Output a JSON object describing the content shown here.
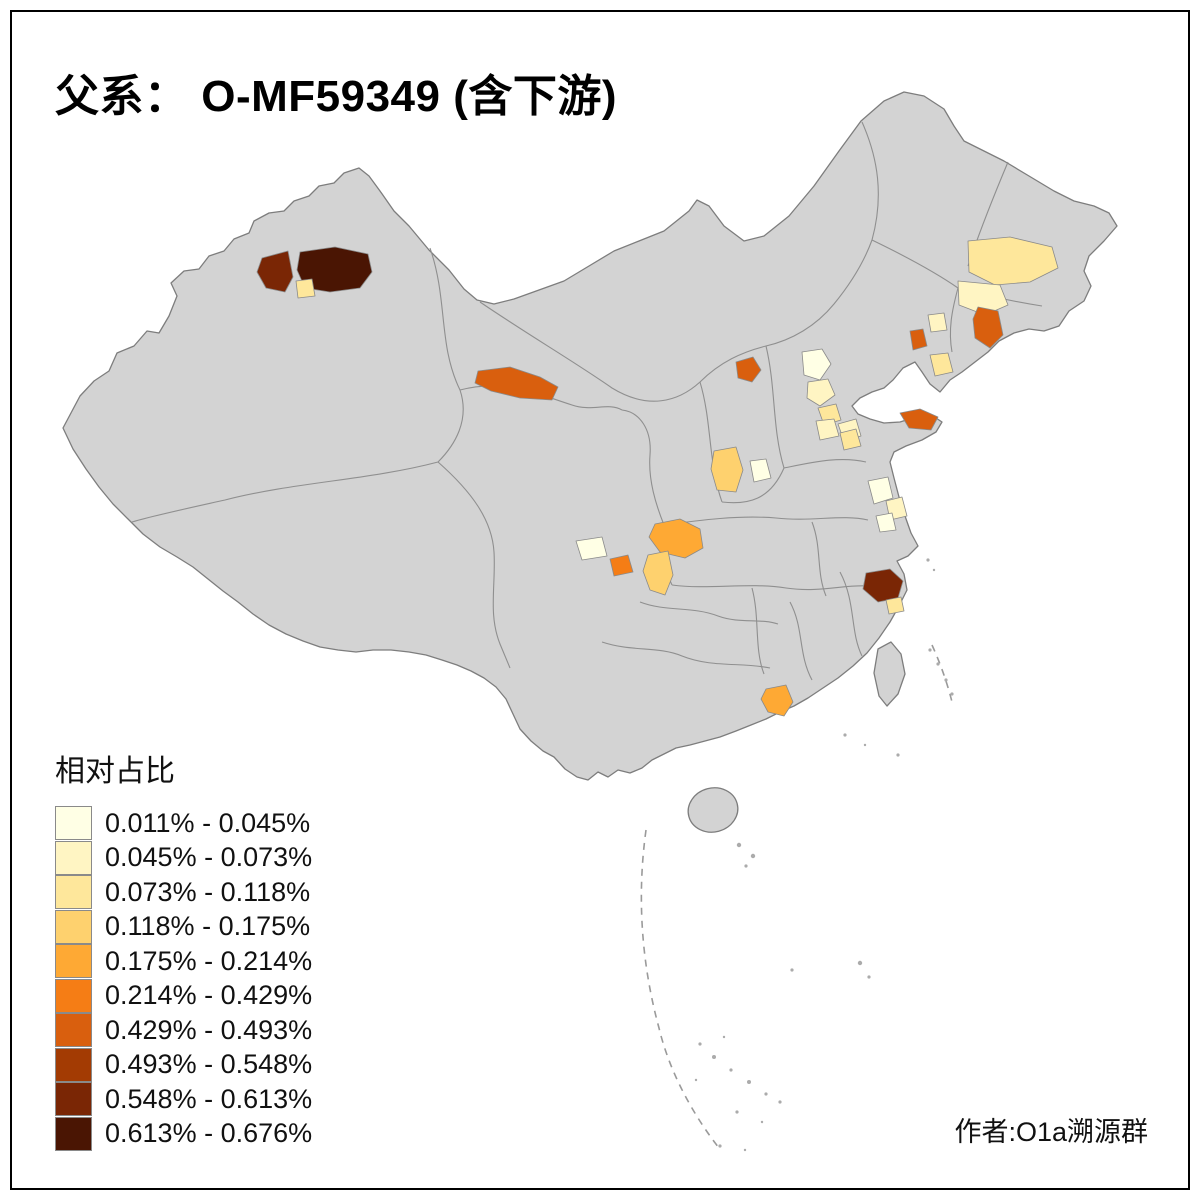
{
  "title": "父系： O-MF59349 (含下游)",
  "attribution": "作者:O1a溯源群",
  "legend": {
    "title": "相对占比",
    "bins": [
      {
        "label": "0.011% - 0.045%",
        "color": "#FFFFE5"
      },
      {
        "label": "0.045% - 0.073%",
        "color": "#FFF5C3"
      },
      {
        "label": "0.073% - 0.118%",
        "color": "#FEE79B"
      },
      {
        "label": "0.118% - 0.175%",
        "color": "#FED16E"
      },
      {
        "label": "0.175% - 0.214%",
        "color": "#FEA934"
      },
      {
        "label": "0.214% - 0.429%",
        "color": "#F57D15"
      },
      {
        "label": "0.429% - 0.493%",
        "color": "#D95F0E"
      },
      {
        "label": "0.493% - 0.548%",
        "color": "#A33B03"
      },
      {
        "label": "0.548% - 0.613%",
        "color": "#7A2605"
      },
      {
        "label": "0.613% - 0.676%",
        "color": "#4A1503"
      }
    ]
  },
  "map": {
    "base_color": "#D3D3D3",
    "border_color": "#7d7d7d",
    "background": "#FFFFFF",
    "regions": [
      {
        "area": "northern-xinjiang-east",
        "bin": 9
      },
      {
        "area": "northern-xinjiang-west",
        "bin": 8
      },
      {
        "area": "northern-xinjiang-small",
        "bin": 2
      },
      {
        "area": "western-gansu-corridor",
        "bin": 6
      },
      {
        "area": "beijing-area",
        "bin": 6
      },
      {
        "area": "northern-hebei-1",
        "bin": 0
      },
      {
        "area": "northern-hebei-2",
        "bin": 1
      },
      {
        "area": "central-hebei",
        "bin": 2
      },
      {
        "area": "southern-hebei",
        "bin": 1
      },
      {
        "area": "central-jilin",
        "bin": 2
      },
      {
        "area": "northern-liaoning",
        "bin": 1
      },
      {
        "area": "eastern-liaoning",
        "bin": 6
      },
      {
        "area": "western-liaoning",
        "bin": 6
      },
      {
        "area": "liaoning-small-north",
        "bin": 1
      },
      {
        "area": "liaodong-south",
        "bin": 2
      },
      {
        "area": "shandong-peninsula-tip",
        "bin": 6
      },
      {
        "area": "western-shandong-1",
        "bin": 1
      },
      {
        "area": "western-shandong-2",
        "bin": 2
      },
      {
        "area": "central-shanxi",
        "bin": 3
      },
      {
        "area": "eastern-shanxi",
        "bin": 0
      },
      {
        "area": "central-jiangsu-1",
        "bin": 0
      },
      {
        "area": "central-jiangsu-2",
        "bin": 1
      },
      {
        "area": "southern-jiangsu",
        "bin": 0
      },
      {
        "area": "chengdu-area",
        "bin": 4
      },
      {
        "area": "chongqing-strip",
        "bin": 3
      },
      {
        "area": "central-sichuan-small",
        "bin": 5
      },
      {
        "area": "western-sichuan-cream",
        "bin": 0
      },
      {
        "area": "central-zhejiang",
        "bin": 8
      },
      {
        "area": "zhejiang-small",
        "bin": 2
      },
      {
        "area": "pearl-river-delta",
        "bin": 4
      }
    ]
  }
}
